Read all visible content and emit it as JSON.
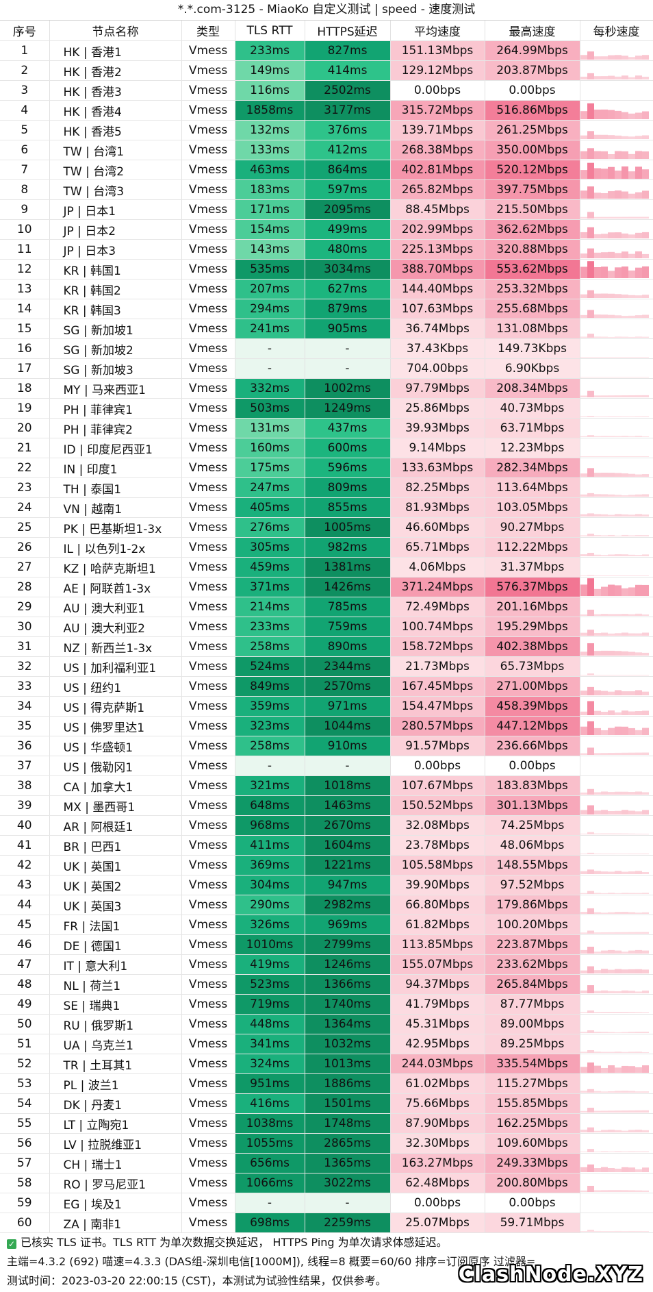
{
  "title": "*.*.com-3125 - MiaoKo 自定义测试 | speed - 速度测试",
  "headers": [
    "序号",
    "节点名称",
    "类型",
    "TLS RTT",
    "HTTPS延迟",
    "平均速度",
    "最高速度",
    "每秒速度"
  ],
  "colors": {
    "rtt_missing": "#e9f7ef",
    "avg_zero": "#ffffff",
    "avg_base": "#fde3e7",
    "max_top": "#f27693"
  },
  "rows": [
    [
      "1",
      "HK | 香港1",
      "Vmess",
      "233ms",
      "827ms",
      "151.13Mbps",
      "264.99Mbps"
    ],
    [
      "2",
      "HK | 香港2",
      "Vmess",
      "149ms",
      "414ms",
      "129.12Mbps",
      "203.87Mbps"
    ],
    [
      "3",
      "HK | 香港3",
      "Vmess",
      "116ms",
      "2502ms",
      "0.00bps",
      "0.00bps"
    ],
    [
      "4",
      "HK | 香港4",
      "Vmess",
      "1858ms",
      "3177ms",
      "315.72Mbps",
      "516.86Mbps"
    ],
    [
      "5",
      "HK | 香港5",
      "Vmess",
      "132ms",
      "376ms",
      "139.71Mbps",
      "261.25Mbps"
    ],
    [
      "6",
      "TW | 台湾1",
      "Vmess",
      "133ms",
      "412ms",
      "268.38Mbps",
      "350.00Mbps"
    ],
    [
      "7",
      "TW | 台湾2",
      "Vmess",
      "463ms",
      "864ms",
      "402.81Mbps",
      "520.12Mbps"
    ],
    [
      "8",
      "TW | 台湾3",
      "Vmess",
      "183ms",
      "597ms",
      "265.82Mbps",
      "397.75Mbps"
    ],
    [
      "9",
      "JP | 日本1",
      "Vmess",
      "171ms",
      "2095ms",
      "88.45Mbps",
      "215.50Mbps"
    ],
    [
      "10",
      "JP | 日本2",
      "Vmess",
      "154ms",
      "499ms",
      "202.99Mbps",
      "362.62Mbps"
    ],
    [
      "11",
      "JP | 日本3",
      "Vmess",
      "143ms",
      "480ms",
      "225.13Mbps",
      "320.88Mbps"
    ],
    [
      "12",
      "KR | 韩国1",
      "Vmess",
      "535ms",
      "3034ms",
      "388.70Mbps",
      "553.62Mbps"
    ],
    [
      "13",
      "KR | 韩国2",
      "Vmess",
      "207ms",
      "627ms",
      "144.40Mbps",
      "253.32Mbps"
    ],
    [
      "14",
      "KR | 韩国3",
      "Vmess",
      "294ms",
      "879ms",
      "107.63Mbps",
      "255.68Mbps"
    ],
    [
      "15",
      "SG | 新加坡1",
      "Vmess",
      "241ms",
      "905ms",
      "36.74Mbps",
      "131.08Mbps"
    ],
    [
      "16",
      "SG | 新加坡2",
      "Vmess",
      "-",
      "-",
      "37.43Kbps",
      "149.73Kbps"
    ],
    [
      "17",
      "SG | 新加坡3",
      "Vmess",
      "-",
      "-",
      "704.00bps",
      "6.90Kbps"
    ],
    [
      "18",
      "MY | 马来西亚1",
      "Vmess",
      "332ms",
      "1002ms",
      "97.79Mbps",
      "208.34Mbps"
    ],
    [
      "19",
      "PH | 菲律宾1",
      "Vmess",
      "503ms",
      "1249ms",
      "25.86Mbps",
      "40.73Mbps"
    ],
    [
      "20",
      "PH | 菲律宾2",
      "Vmess",
      "131ms",
      "437ms",
      "39.93Mbps",
      "63.71Mbps"
    ],
    [
      "21",
      "ID | 印度尼西亚1",
      "Vmess",
      "160ms",
      "600ms",
      "9.14Mbps",
      "12.23Mbps"
    ],
    [
      "22",
      "IN | 印度1",
      "Vmess",
      "175ms",
      "596ms",
      "133.63Mbps",
      "282.34Mbps"
    ],
    [
      "23",
      "TH | 泰国1",
      "Vmess",
      "247ms",
      "809ms",
      "82.25Mbps",
      "113.64Mbps"
    ],
    [
      "24",
      "VN | 越南1",
      "Vmess",
      "405ms",
      "855ms",
      "81.93Mbps",
      "103.05Mbps"
    ],
    [
      "25",
      "PK | 巴基斯坦1-3x",
      "Vmess",
      "276ms",
      "1005ms",
      "46.60Mbps",
      "90.27Mbps"
    ],
    [
      "26",
      "IL | 以色列1-2x",
      "Vmess",
      "305ms",
      "982ms",
      "65.71Mbps",
      "112.22Mbps"
    ],
    [
      "27",
      "KZ | 哈萨克斯坦1",
      "Vmess",
      "459ms",
      "1381ms",
      "4.06Mbps",
      "31.37Mbps"
    ],
    [
      "28",
      "AE | 阿联酋1-3x",
      "Vmess",
      "371ms",
      "1426ms",
      "371.24Mbps",
      "576.37Mbps"
    ],
    [
      "29",
      "AU | 澳大利亚1",
      "Vmess",
      "214ms",
      "785ms",
      "72.49Mbps",
      "201.16Mbps"
    ],
    [
      "30",
      "AU | 澳大利亚2",
      "Vmess",
      "233ms",
      "759ms",
      "100.74Mbps",
      "195.29Mbps"
    ],
    [
      "31",
      "NZ | 新西兰1-3x",
      "Vmess",
      "258ms",
      "890ms",
      "158.72Mbps",
      "402.38Mbps"
    ],
    [
      "32",
      "US | 加利福利亚1",
      "Vmess",
      "524ms",
      "2344ms",
      "21.73Mbps",
      "65.73Mbps"
    ],
    [
      "33",
      "US | 纽约1",
      "Vmess",
      "849ms",
      "2570ms",
      "167.45Mbps",
      "271.00Mbps"
    ],
    [
      "34",
      "US | 得克萨斯1",
      "Vmess",
      "359ms",
      "971ms",
      "154.47Mbps",
      "458.39Mbps"
    ],
    [
      "35",
      "US | 佛罗里达1",
      "Vmess",
      "323ms",
      "1044ms",
      "280.57Mbps",
      "447.12Mbps"
    ],
    [
      "36",
      "US | 华盛顿1",
      "Vmess",
      "258ms",
      "910ms",
      "91.57Mbps",
      "236.66Mbps"
    ],
    [
      "37",
      "US | 俄勒冈1",
      "Vmess",
      "-",
      "-",
      "0.00bps",
      "0.00bps"
    ],
    [
      "38",
      "CA | 加拿大1",
      "Vmess",
      "321ms",
      "1018ms",
      "107.67Mbps",
      "183.83Mbps"
    ],
    [
      "39",
      "MX | 墨西哥1",
      "Vmess",
      "648ms",
      "1463ms",
      "150.52Mbps",
      "301.13Mbps"
    ],
    [
      "40",
      "AR | 阿根廷1",
      "Vmess",
      "968ms",
      "2670ms",
      "32.08Mbps",
      "74.25Mbps"
    ],
    [
      "41",
      "BR | 巴西1",
      "Vmess",
      "411ms",
      "1604ms",
      "23.78Mbps",
      "48.06Mbps"
    ],
    [
      "42",
      "UK | 英国1",
      "Vmess",
      "369ms",
      "1221ms",
      "105.58Mbps",
      "148.55Mbps"
    ],
    [
      "43",
      "UK | 英国2",
      "Vmess",
      "304ms",
      "947ms",
      "39.90Mbps",
      "97.52Mbps"
    ],
    [
      "44",
      "UK | 英国3",
      "Vmess",
      "290ms",
      "2982ms",
      "66.80Mbps",
      "179.86Mbps"
    ],
    [
      "45",
      "FR | 法国1",
      "Vmess",
      "326ms",
      "969ms",
      "61.82Mbps",
      "100.20Mbps"
    ],
    [
      "46",
      "DE | 德国1",
      "Vmess",
      "1010ms",
      "2799ms",
      "113.85Mbps",
      "223.87Mbps"
    ],
    [
      "47",
      "IT | 意大利1",
      "Vmess",
      "419ms",
      "1246ms",
      "155.07Mbps",
      "233.62Mbps"
    ],
    [
      "48",
      "NL | 荷兰1",
      "Vmess",
      "523ms",
      "1366ms",
      "94.37Mbps",
      "265.84Mbps"
    ],
    [
      "49",
      "SE | 瑞典1",
      "Vmess",
      "719ms",
      "1740ms",
      "41.79Mbps",
      "87.77Mbps"
    ],
    [
      "50",
      "RU | 俄罗斯1",
      "Vmess",
      "448ms",
      "1364ms",
      "45.31Mbps",
      "89.00Mbps"
    ],
    [
      "51",
      "UA | 乌克兰1",
      "Vmess",
      "341ms",
      "1032ms",
      "42.95Mbps",
      "89.25Mbps"
    ],
    [
      "52",
      "TR | 土耳其1",
      "Vmess",
      "324ms",
      "1013ms",
      "244.03Mbps",
      "335.54Mbps"
    ],
    [
      "53",
      "PL | 波兰1",
      "Vmess",
      "951ms",
      "1886ms",
      "61.02Mbps",
      "115.27Mbps"
    ],
    [
      "54",
      "DK | 丹麦1",
      "Vmess",
      "416ms",
      "1501ms",
      "75.66Mbps",
      "155.85Mbps"
    ],
    [
      "55",
      "LT | 立陶宛1",
      "Vmess",
      "1038ms",
      "1748ms",
      "87.90Mbps",
      "162.25Mbps"
    ],
    [
      "56",
      "LV | 拉脱维亚1",
      "Vmess",
      "1055ms",
      "2865ms",
      "32.30Mbps",
      "109.60Mbps"
    ],
    [
      "57",
      "CH | 瑞士1",
      "Vmess",
      "656ms",
      "1365ms",
      "163.27Mbps",
      "249.33Mbps"
    ],
    [
      "58",
      "RO | 罗马尼亚1",
      "Vmess",
      "1066ms",
      "3022ms",
      "62.48Mbps",
      "200.80Mbps"
    ],
    [
      "59",
      "EG | 埃及1",
      "Vmess",
      "-",
      "-",
      "0.00bps",
      "0.00bps"
    ],
    [
      "60",
      "ZA | 南非1",
      "Vmess",
      "698ms",
      "2259ms",
      "25.07Mbps",
      "59.71Mbps"
    ]
  ],
  "footer": {
    "line1": "已核实 TLS 证书。TLS RTT 为单次数据交换延迟， HTTPS Ping 为单次请求体感延迟。",
    "line2": "主端=4.3.2 (692) 喵速=4.3.3 (DAS组-深圳电信[1000M]), 线程=8 概要=60/60 排序=订阅原序 过滤器=",
    "line3": "测试时间：2023-03-20 22:00:15 (CST)，本测试为试验性结果，仅供参考。",
    "brand": "ClashNode.XYZ"
  }
}
